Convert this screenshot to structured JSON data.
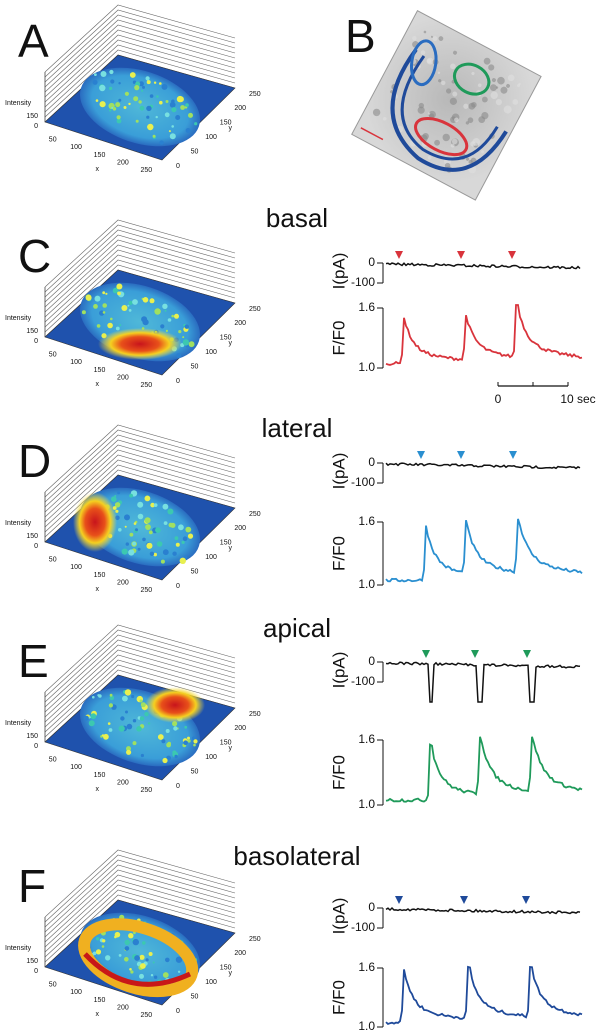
{
  "panels": [
    {
      "letter": "A",
      "surface": {
        "z_label": "Intensity",
        "z_ticks": [
          "150",
          "0"
        ],
        "x_label": "x",
        "x_ticks": [
          "50",
          "100",
          "150",
          "200",
          "250"
        ],
        "y_label": "y",
        "y_ticks": [
          "250",
          "200",
          "150",
          "100",
          "50",
          "0"
        ]
      }
    },
    {
      "letter": "B"
    },
    {
      "letter": "C",
      "condition": "basal",
      "surface": {
        "z_label": "Intensity",
        "z_ticks": [
          "150",
          "0"
        ],
        "x_label": "x",
        "x_ticks": [
          "50",
          "100",
          "150",
          "200",
          "250"
        ],
        "y_label": "y",
        "y_ticks": [
          "250",
          "200",
          "150",
          "100",
          "50",
          "0"
        ]
      },
      "traces": {
        "current_label": "I(pA)",
        "current_ticks": [
          "0",
          "-100"
        ],
        "fluor_label": "F/F0",
        "fluor_ticks": [
          "1.6",
          "1.0"
        ],
        "color": "#d9343c",
        "scale_bar": [
          "0",
          "10 sec"
        ]
      }
    },
    {
      "letter": "D",
      "condition": "lateral",
      "surface": {
        "z_label": "Intensity",
        "z_ticks": [
          "150",
          "0"
        ],
        "x_label": "x",
        "x_ticks": [
          "50",
          "100",
          "150",
          "200",
          "250"
        ],
        "y_label": "y",
        "y_ticks": [
          "250",
          "200",
          "150",
          "100",
          "50",
          "0"
        ]
      },
      "traces": {
        "current_label": "I(pA)",
        "current_ticks": [
          "0",
          "-100"
        ],
        "fluor_label": "F/F0",
        "fluor_ticks": [
          "1.6",
          "1.0"
        ],
        "color": "#2a8fd0"
      }
    },
    {
      "letter": "E",
      "condition": "apical",
      "surface": {
        "z_label": "Intensity",
        "z_ticks": [
          "150",
          "0"
        ],
        "x_label": "x",
        "x_ticks": [
          "50",
          "100",
          "150",
          "200",
          "250"
        ],
        "y_label": "y",
        "y_ticks": [
          "250",
          "200",
          "150",
          "100",
          "50",
          "0"
        ]
      },
      "traces": {
        "current_label": "I(pA)",
        "current_ticks": [
          "0",
          "-100"
        ],
        "fluor_label": "F/F0",
        "fluor_ticks": [
          "1.6",
          "1.0"
        ],
        "color": "#1f9a5a"
      }
    },
    {
      "letter": "F",
      "condition": "basolateral",
      "surface": {
        "z_label": "Intensity",
        "z_ticks": [
          "150",
          "0"
        ],
        "x_label": "x",
        "x_ticks": [
          "50",
          "100",
          "150",
          "200",
          "250"
        ],
        "y_label": "y",
        "y_ticks": [
          "250",
          "200",
          "150",
          "100",
          "50",
          "0"
        ]
      },
      "traces": {
        "current_label": "I(pA)",
        "current_ticks": [
          "0",
          "-100"
        ],
        "fluor_label": "F/F0",
        "fluor_ticks": [
          "1.6",
          "1.0"
        ],
        "color": "#1f4a9a"
      }
    }
  ]
}
